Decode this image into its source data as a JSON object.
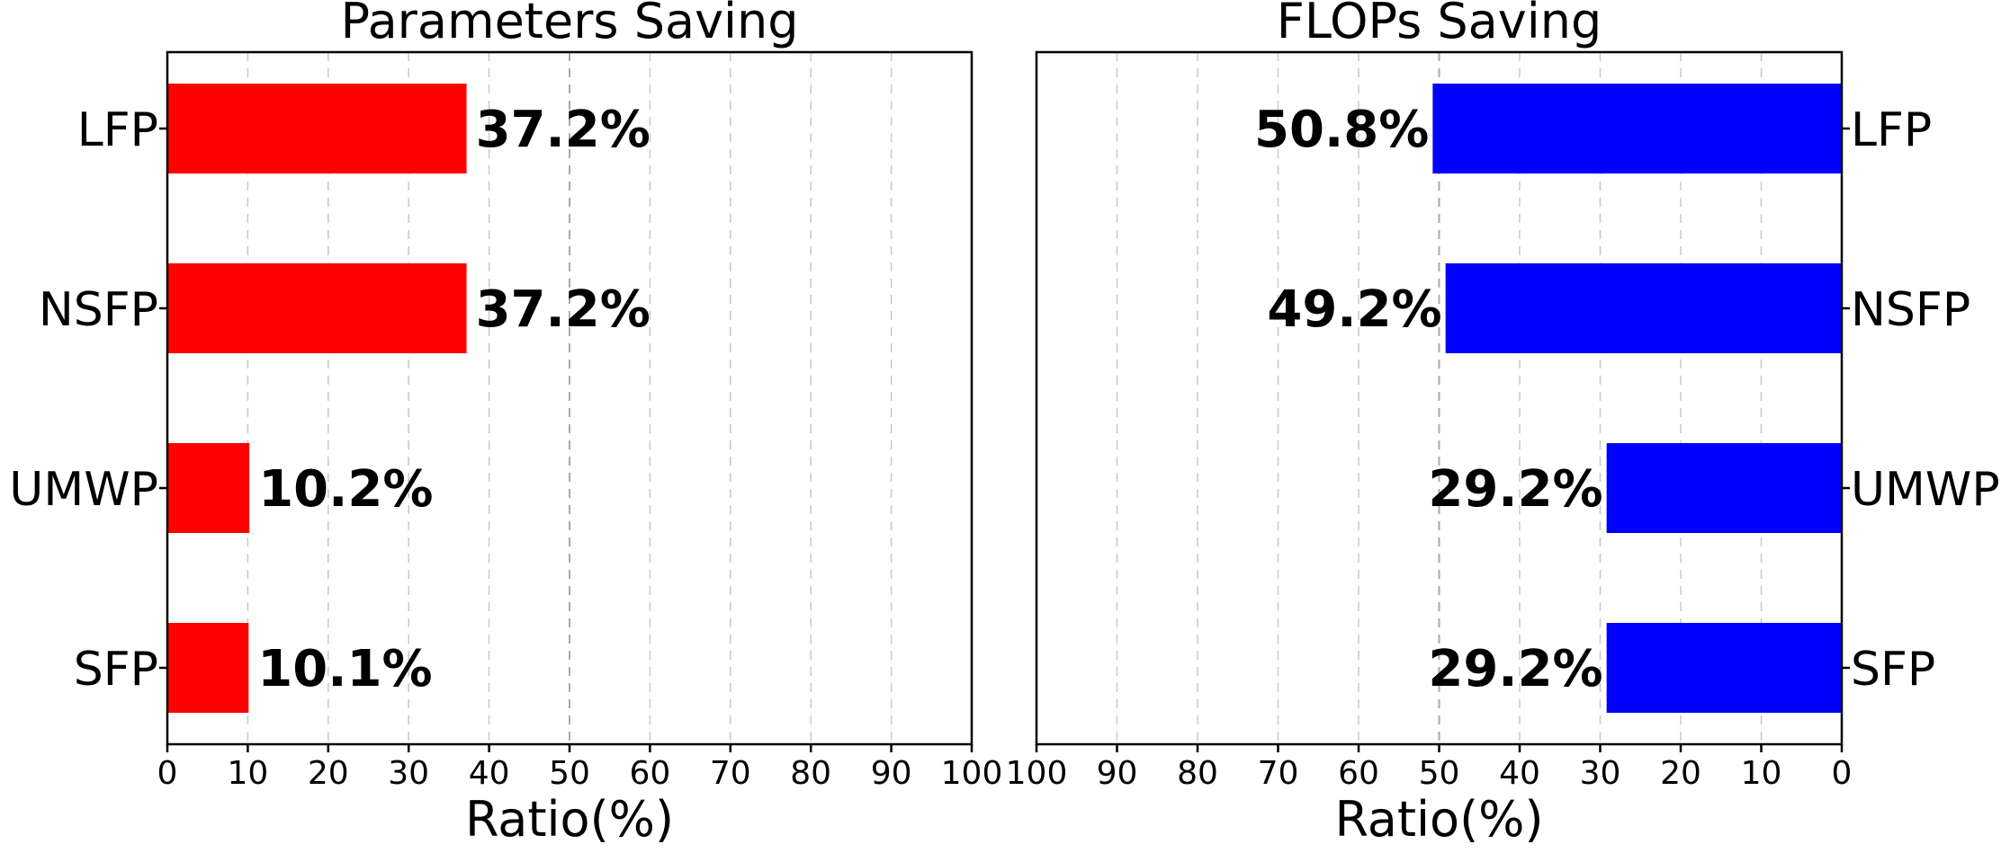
{
  "chart_data": [
    {
      "type": "bar",
      "orientation": "horizontal",
      "title": "Parameters Saving",
      "xlabel": "Ratio(%)",
      "ylabel": "",
      "categories": [
        "LFP",
        "NSFP",
        "UMWP",
        "SFP"
      ],
      "values": [
        37.2,
        37.2,
        10.2,
        10.1
      ],
      "data_labels": [
        "37.2%",
        "37.2%",
        "10.2%",
        "10.1%"
      ],
      "xlim": [
        0,
        100
      ],
      "xticks": [
        0,
        10,
        20,
        30,
        40,
        50,
        60,
        70,
        80,
        90,
        100
      ],
      "x_direction": "normal",
      "ytick_side": "left",
      "grid": "vertical dashed",
      "color": "#ff0000"
    },
    {
      "type": "bar",
      "orientation": "horizontal",
      "title": "FLOPs Saving",
      "xlabel": "Ratio(%)",
      "ylabel": "",
      "categories": [
        "LFP",
        "NSFP",
        "UMWP",
        "SFP"
      ],
      "values": [
        50.8,
        49.2,
        29.2,
        29.2
      ],
      "data_labels": [
        "50.8%",
        "49.2%",
        "29.2%",
        "29.2%"
      ],
      "xlim": [
        0,
        100
      ],
      "xticks": [
        100,
        90,
        80,
        70,
        60,
        50,
        40,
        30,
        20,
        10,
        0
      ],
      "x_direction": "reversed",
      "ytick_side": "right",
      "grid": "vertical dashed",
      "color": "#0000ff"
    }
  ]
}
